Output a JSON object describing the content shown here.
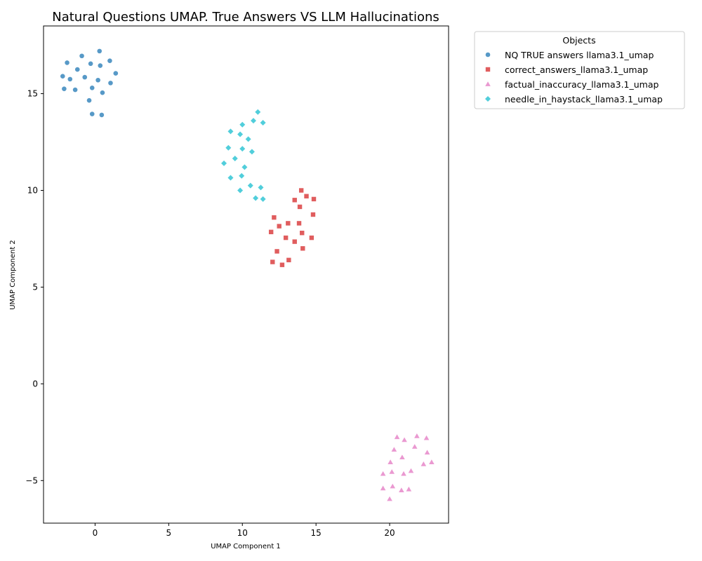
{
  "chart_data": {
    "type": "scatter",
    "title": "Natural Questions UMAP. True Answers VS LLM Hallucinations",
    "xlabel": "UMAP Component 1",
    "ylabel": "UMAP Component 2",
    "xlim": [
      -3.5,
      24.0
    ],
    "ylim": [
      -7.2,
      18.5
    ],
    "xticks": [
      0,
      5,
      10,
      15,
      20
    ],
    "yticks": [
      -5,
      0,
      5,
      10,
      15
    ],
    "grid": false,
    "legend": {
      "title": "Objects",
      "placement": "outside-top-right"
    },
    "series": [
      {
        "name": "NQ TRUE answers llama3.1_umap",
        "marker": "circle",
        "color": "#1f77b4",
        "points": [
          [
            0.3,
            17.2
          ],
          [
            -0.9,
            16.95
          ],
          [
            -1.9,
            16.6
          ],
          [
            1.0,
            16.7
          ],
          [
            -0.3,
            16.55
          ],
          [
            0.35,
            16.45
          ],
          [
            -1.2,
            16.25
          ],
          [
            1.4,
            16.05
          ],
          [
            -2.2,
            15.9
          ],
          [
            -0.7,
            15.85
          ],
          [
            -1.7,
            15.75
          ],
          [
            0.2,
            15.7
          ],
          [
            1.05,
            15.55
          ],
          [
            -0.2,
            15.3
          ],
          [
            -2.1,
            15.25
          ],
          [
            -1.35,
            15.2
          ],
          [
            0.5,
            15.05
          ],
          [
            -0.4,
            14.65
          ],
          [
            -0.2,
            13.95
          ],
          [
            0.45,
            13.9
          ]
        ]
      },
      {
        "name": "correct_answers_llama3.1_umap",
        "marker": "square",
        "color": "#d62728",
        "points": [
          [
            14.0,
            10.0
          ],
          [
            14.35,
            9.7
          ],
          [
            13.55,
            9.5
          ],
          [
            14.85,
            9.55
          ],
          [
            13.9,
            9.15
          ],
          [
            14.8,
            8.75
          ],
          [
            12.15,
            8.6
          ],
          [
            13.1,
            8.3
          ],
          [
            13.85,
            8.3
          ],
          [
            12.5,
            8.15
          ],
          [
            11.95,
            7.85
          ],
          [
            14.05,
            7.8
          ],
          [
            12.95,
            7.55
          ],
          [
            14.7,
            7.55
          ],
          [
            13.55,
            7.35
          ],
          [
            14.1,
            7.0
          ],
          [
            12.35,
            6.85
          ],
          [
            12.05,
            6.3
          ],
          [
            13.15,
            6.4
          ],
          [
            12.7,
            6.15
          ]
        ]
      },
      {
        "name": "factual_inaccuracy_llama3.1_umap",
        "marker": "triangle",
        "color": "#e377c2",
        "points": [
          [
            20.5,
            -2.75
          ],
          [
            21.85,
            -2.7
          ],
          [
            22.5,
            -2.8
          ],
          [
            21.0,
            -2.9
          ],
          [
            21.7,
            -3.25
          ],
          [
            20.3,
            -3.4
          ],
          [
            22.55,
            -3.55
          ],
          [
            20.85,
            -3.8
          ],
          [
            20.05,
            -4.05
          ],
          [
            22.85,
            -4.05
          ],
          [
            22.3,
            -4.15
          ],
          [
            21.45,
            -4.5
          ],
          [
            20.15,
            -4.55
          ],
          [
            19.55,
            -4.65
          ],
          [
            20.95,
            -4.65
          ],
          [
            20.2,
            -5.3
          ],
          [
            19.55,
            -5.4
          ],
          [
            21.3,
            -5.45
          ],
          [
            20.8,
            -5.5
          ],
          [
            20.0,
            -5.95
          ]
        ]
      },
      {
        "name": "needle_in_haystack_llama3.1_umap",
        "marker": "diamond",
        "color": "#17becf",
        "points": [
          [
            11.05,
            14.05
          ],
          [
            10.75,
            13.6
          ],
          [
            11.4,
            13.5
          ],
          [
            10.0,
            13.4
          ],
          [
            9.2,
            13.05
          ],
          [
            9.85,
            12.9
          ],
          [
            10.4,
            12.65
          ],
          [
            9.05,
            12.2
          ],
          [
            10.0,
            12.15
          ],
          [
            10.65,
            12.0
          ],
          [
            9.5,
            11.65
          ],
          [
            8.75,
            11.4
          ],
          [
            10.15,
            11.2
          ],
          [
            9.95,
            10.75
          ],
          [
            9.2,
            10.65
          ],
          [
            10.55,
            10.25
          ],
          [
            11.25,
            10.15
          ],
          [
            9.85,
            10.0
          ],
          [
            10.9,
            9.6
          ],
          [
            11.4,
            9.55
          ]
        ]
      }
    ]
  }
}
